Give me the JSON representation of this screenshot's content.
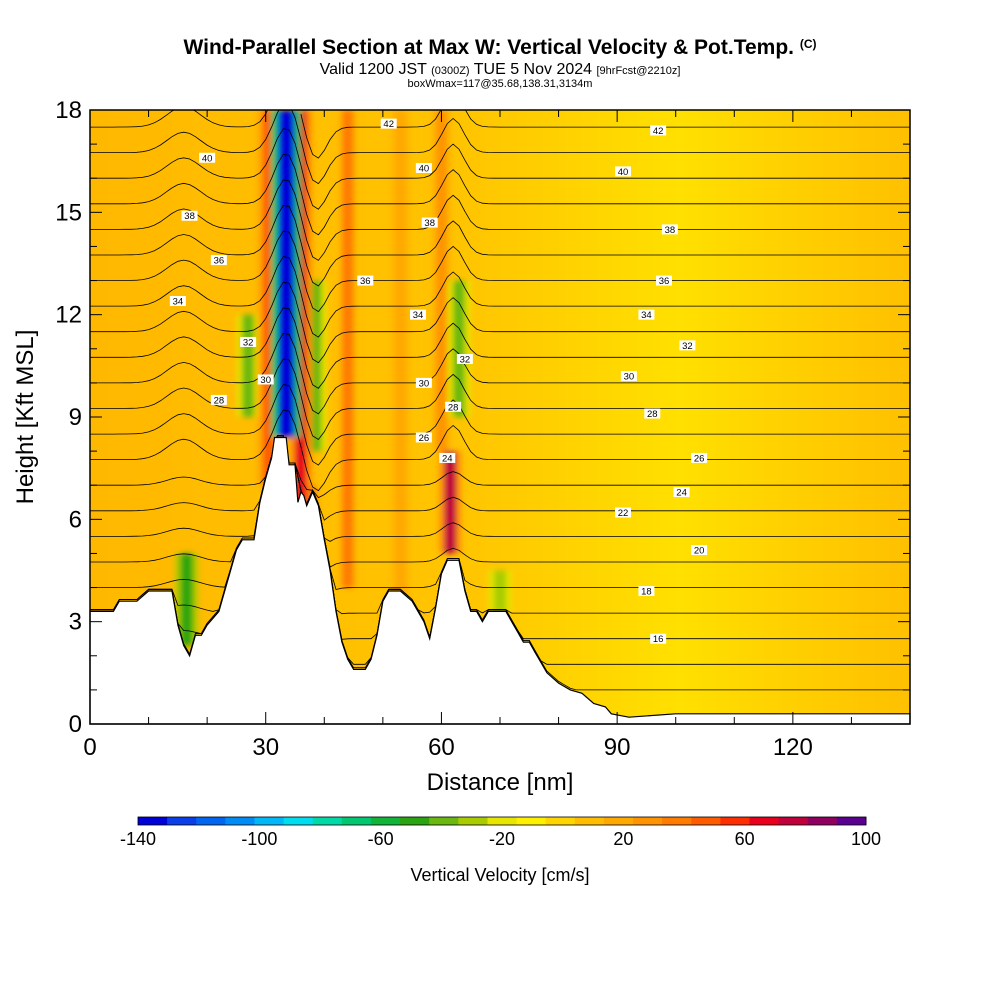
{
  "header": {
    "title_main": "Wind-Parallel Section at Max W: Vertical Velocity & Pot.Temp.",
    "title_mark": "(C)",
    "valid_prefix": "Valid 1200 JST",
    "valid_utc": "(0300Z)",
    "valid_date": "TUE 5 Nov 2024",
    "valid_fcst": "[9hrFcst@2210z]",
    "box_info": "boxWmax=117@35.68,138.31,3134m"
  },
  "chart_data": {
    "type": "heatmap",
    "xlabel": "Distance [nm]",
    "ylabel": "Height [Kft MSL]",
    "xlim": [
      0,
      140
    ],
    "ylim": [
      0,
      18
    ],
    "x_ticks": [
      0,
      30,
      60,
      90,
      120
    ],
    "y_ticks": [
      0,
      3,
      6,
      9,
      12,
      15,
      18
    ],
    "terrain_kft": [
      [
        0,
        3.3
      ],
      [
        4,
        3.3
      ],
      [
        5,
        3.6
      ],
      [
        8,
        3.6
      ],
      [
        10,
        3.9
      ],
      [
        14,
        3.9
      ],
      [
        15,
        2.9
      ],
      [
        16,
        2.3
      ],
      [
        17,
        2.0
      ],
      [
        18,
        2.6
      ],
      [
        19,
        2.6
      ],
      [
        20,
        2.9
      ],
      [
        22,
        3.3
      ],
      [
        24,
        4.5
      ],
      [
        25,
        5.1
      ],
      [
        26,
        5.4
      ],
      [
        28,
        5.4
      ],
      [
        29,
        6.5
      ],
      [
        30,
        7.2
      ],
      [
        31,
        7.8
      ],
      [
        31.5,
        8.4
      ],
      [
        33.5,
        8.4
      ],
      [
        34,
        7.6
      ],
      [
        35,
        7.6
      ],
      [
        35.5,
        6.5
      ],
      [
        36,
        6.8
      ],
      [
        36.5,
        6.7
      ],
      [
        37,
        6.4
      ],
      [
        38,
        6.8
      ],
      [
        39,
        6.4
      ],
      [
        40,
        5.4
      ],
      [
        41,
        4.5
      ],
      [
        42,
        3.3
      ],
      [
        43,
        2.4
      ],
      [
        44,
        1.9
      ],
      [
        45,
        1.6
      ],
      [
        47,
        1.6
      ],
      [
        48,
        1.9
      ],
      [
        49,
        2.6
      ],
      [
        50,
        3.6
      ],
      [
        51,
        3.9
      ],
      [
        53,
        3.9
      ],
      [
        55,
        3.6
      ],
      [
        56,
        3.3
      ],
      [
        57,
        3.0
      ],
      [
        58,
        2.5
      ],
      [
        59,
        3.4
      ],
      [
        60,
        4.4
      ],
      [
        61,
        4.8
      ],
      [
        63,
        4.8
      ],
      [
        64,
        3.9
      ],
      [
        65,
        3.3
      ],
      [
        66,
        3.3
      ],
      [
        67,
        3.0
      ],
      [
        68,
        3.3
      ],
      [
        71,
        3.3
      ],
      [
        72,
        3.0
      ],
      [
        73,
        2.7
      ],
      [
        74,
        2.4
      ],
      [
        75,
        2.4
      ],
      [
        76,
        2.1
      ],
      [
        77,
        1.8
      ],
      [
        78,
        1.5
      ],
      [
        80,
        1.2
      ],
      [
        82,
        1.0
      ],
      [
        84,
        0.9
      ],
      [
        86,
        0.6
      ],
      [
        88,
        0.5
      ],
      [
        89,
        0.3
      ],
      [
        92,
        0.2
      ],
      [
        100,
        0.3
      ],
      [
        110,
        0.3
      ],
      [
        120,
        0.3
      ],
      [
        130,
        0.3
      ],
      [
        140,
        0.3
      ]
    ],
    "updrafts": [
      {
        "x": 36,
        "y_range": [
          6,
          18
        ],
        "w_cm_s": 75
      },
      {
        "x": 30.5,
        "y_range": [
          7,
          18
        ],
        "w_cm_s": 50
      },
      {
        "x": 44,
        "y_range": [
          4,
          18
        ],
        "w_cm_s": 40
      },
      {
        "x": 61.5,
        "y_range": [
          5,
          8
        ],
        "w_cm_s": 80
      },
      {
        "x": 60,
        "y_range": [
          8,
          18
        ],
        "w_cm_s": 35
      },
      {
        "x": 53,
        "y_range": [
          1.6,
          18
        ],
        "w_cm_s": 25
      },
      {
        "x": 37,
        "y_range": [
          5,
          7
        ],
        "w_cm_s": 70
      }
    ],
    "downdrafts": [
      {
        "x": 33.5,
        "y_range": [
          8.4,
          18
        ],
        "w_cm_s": -140
      },
      {
        "x": 38.5,
        "y_range": [
          8,
          13
        ],
        "w_cm_s": -40
      },
      {
        "x": 27,
        "y_range": [
          9,
          12
        ],
        "w_cm_s": -40
      },
      {
        "x": 63,
        "y_range": [
          9,
          13
        ],
        "w_cm_s": -35
      },
      {
        "x": 16.5,
        "y_range": [
          2.3,
          5
        ],
        "w_cm_s": -45
      },
      {
        "x": 70,
        "y_range": [
          3.3,
          4.5
        ],
        "w_cm_s": -25
      }
    ],
    "theta_labels": [
      {
        "text": "42",
        "x": 51,
        "y": 17.6
      },
      {
        "text": "42",
        "x": 97,
        "y": 17.4
      },
      {
        "text": "40",
        "x": 20,
        "y": 16.6
      },
      {
        "text": "40",
        "x": 57,
        "y": 16.3
      },
      {
        "text": "40",
        "x": 91,
        "y": 16.2
      },
      {
        "text": "38",
        "x": 17,
        "y": 14.9
      },
      {
        "text": "38",
        "x": 58,
        "y": 14.7
      },
      {
        "text": "38",
        "x": 99,
        "y": 14.5
      },
      {
        "text": "36",
        "x": 22,
        "y": 13.6
      },
      {
        "text": "36",
        "x": 47,
        "y": 13.0
      },
      {
        "text": "36",
        "x": 98,
        "y": 13.0
      },
      {
        "text": "34",
        "x": 15,
        "y": 12.4
      },
      {
        "text": "34",
        "x": 56,
        "y": 12.0
      },
      {
        "text": "34",
        "x": 95,
        "y": 12.0
      },
      {
        "text": "32",
        "x": 27,
        "y": 11.2
      },
      {
        "text": "32",
        "x": 64,
        "y": 10.7
      },
      {
        "text": "32",
        "x": 102,
        "y": 11.1
      },
      {
        "text": "30",
        "x": 30,
        "y": 10.1
      },
      {
        "text": "30",
        "x": 57,
        "y": 10.0
      },
      {
        "text": "30",
        "x": 92,
        "y": 10.2
      },
      {
        "text": "28",
        "x": 22,
        "y": 9.5
      },
      {
        "text": "28",
        "x": 62,
        "y": 9.3
      },
      {
        "text": "28",
        "x": 96,
        "y": 9.1
      },
      {
        "text": "26",
        "x": 57,
        "y": 8.4
      },
      {
        "text": "26",
        "x": 104,
        "y": 7.8
      },
      {
        "text": "24",
        "x": 61,
        "y": 7.8
      },
      {
        "text": "24",
        "x": 101,
        "y": 6.8
      },
      {
        "text": "22",
        "x": 91,
        "y": 6.2
      },
      {
        "text": "20",
        "x": 104,
        "y": 5.1
      },
      {
        "text": "18",
        "x": 95,
        "y": 3.9
      },
      {
        "text": "16",
        "x": 97,
        "y": 2.5
      }
    ],
    "colorbar": {
      "label": "Vertical Velocity [cm/s]",
      "min": -140,
      "max": 100,
      "step": 10,
      "tick_labels": [
        "-140",
        "-100",
        "-60",
        "-20",
        "20",
        "60",
        "100"
      ],
      "colors": [
        "#0000d8",
        "#0a3ee8",
        "#0066f0",
        "#008cf6",
        "#00b8f8",
        "#00dcf0",
        "#00d8a8",
        "#00c870",
        "#10b438",
        "#2aa410",
        "#6ab810",
        "#a8cc00",
        "#e6e600",
        "#fff000",
        "#ffd400",
        "#ffbc00",
        "#ffa800",
        "#ff9400",
        "#ff7c00",
        "#ff5c00",
        "#ff2e00",
        "#e8001e",
        "#c0003c",
        "#900060",
        "#5a0090"
      ]
    }
  }
}
